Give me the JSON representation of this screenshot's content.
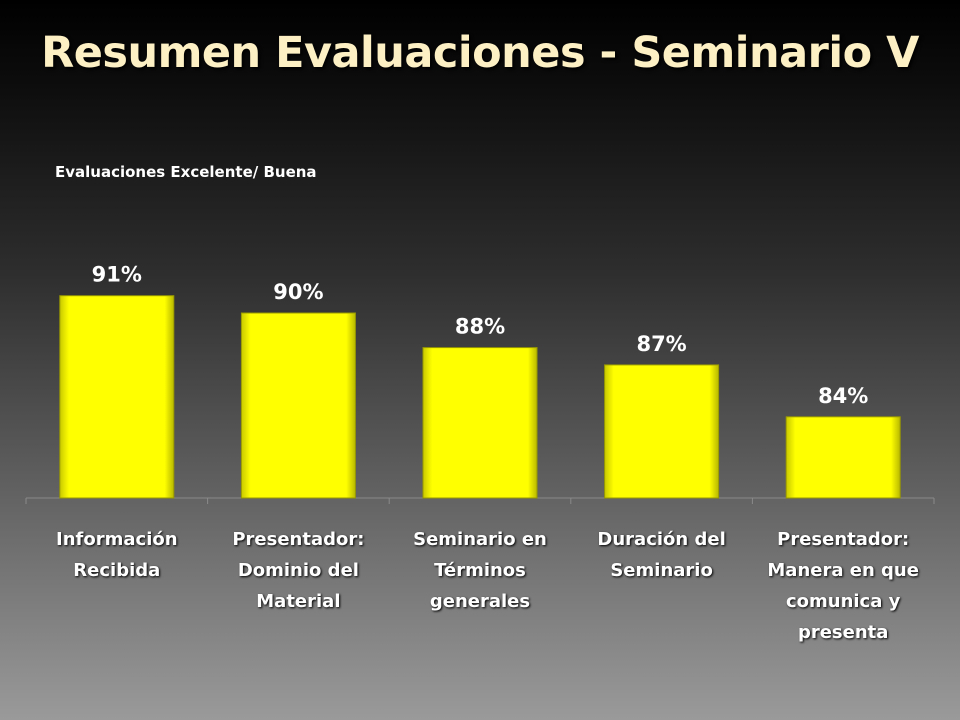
{
  "title": "Resumen Evaluaciones - Seminario V",
  "colors": {
    "bar": "#ffff00",
    "title": "#fdf0c4",
    "text": "#ffffff"
  },
  "chart_data": {
    "type": "bar",
    "title": "Evaluaciones  Excelente/ Buena",
    "categories": [
      "Información\nRecibida",
      "Presentador:\nDominio del\nMaterial",
      "Seminario en\nTérminos\ngenerales",
      "Duración del\nSeminario",
      "Presentador:\nManera en que\ncomunica y\npresenta"
    ],
    "values": [
      91,
      90,
      88,
      87,
      84
    ],
    "data_labels": [
      "91%",
      "90%",
      "88%",
      "87%",
      "84%"
    ],
    "ylim": [
      0,
      100
    ],
    "grid": false,
    "legend": "none"
  }
}
